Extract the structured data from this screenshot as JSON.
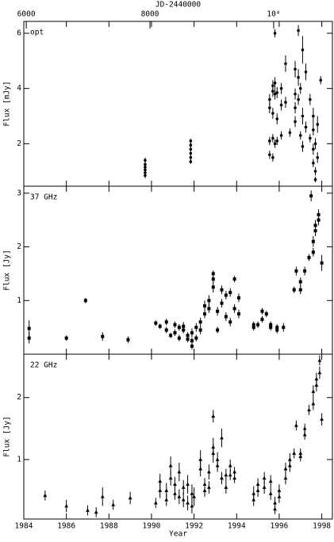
{
  "chart_data": [
    {
      "type": "scatter",
      "label": "opt",
      "ylabel": "Flux [mJy]",
      "marker": "circle",
      "color": "#000000",
      "x2label": "JD-2440000",
      "x2lim": [
        5960,
        10950
      ],
      "x2ticks": [
        6000,
        8000,
        {
          "value": 10000,
          "label": "10⁴"
        }
      ],
      "ylim": [
        0.46,
        6.43
      ],
      "yticks": [
        2,
        4,
        6
      ],
      "x": [
        1989.7,
        1989.7,
        1989.7,
        1989.7,
        1989.7,
        1989.7,
        1991.84,
        1991.84,
        1991.84,
        1991.84,
        1991.84,
        1991.84,
        1995.55,
        1995.55,
        1995.55,
        1995.55,
        1995.7,
        1995.7,
        1995.7,
        1995.7,
        1995.7,
        1995.8,
        1995.8,
        1995.8,
        1995.8,
        1995.9,
        1995.9,
        1995.9,
        1996.1,
        1996.1,
        1996.1,
        1996.3,
        1996.3,
        1996.5,
        1996.75,
        1996.75,
        1996.75,
        1996.75,
        1996.9,
        1996.9,
        1996.9,
        1997.0,
        1997.0,
        1997.1,
        1997.1,
        1997.1,
        1997.25,
        1997.25,
        1997.45,
        1997.45,
        1997.6,
        1997.6,
        1997.6,
        1997.6,
        1997.7,
        1997.7,
        1997.7,
        1997.8,
        1997.8,
        1997.95
      ],
      "values": [
        0.85,
        0.95,
        1.05,
        1.15,
        1.25,
        1.4,
        1.35,
        1.5,
        1.65,
        1.8,
        1.95,
        2.1,
        3.6,
        3.3,
        2.1,
        1.6,
        3.9,
        3.1,
        2.2,
        1.5,
        4.1,
        6.0,
        4.2,
        3.8,
        2.0,
        3.85,
        2.1,
        2.9,
        3.4,
        2.3,
        4.0,
        4.9,
        3.5,
        2.4,
        4.7,
        3.8,
        3.3,
        2.8,
        6.1,
        4.4,
        3.6,
        2.3,
        4.0,
        5.4,
        3.0,
        1.9,
        4.6,
        2.6,
        3.6,
        2.2,
        3.0,
        2.5,
        1.8,
        1.3,
        2.0,
        1.0,
        0.7,
        2.7,
        1.5,
        4.3
      ],
      "errors": [
        0.1,
        0.1,
        0.1,
        0.1,
        0.1,
        0.1,
        0.08,
        0.08,
        0.08,
        0.08,
        0.08,
        0.08,
        0.2,
        0.2,
        0.15,
        0.15,
        0.2,
        0.2,
        0.15,
        0.15,
        0.2,
        0.15,
        0.2,
        0.2,
        0.15,
        0.2,
        0.15,
        0.2,
        0.2,
        0.15,
        0.2,
        0.3,
        0.2,
        0.15,
        0.3,
        0.2,
        0.2,
        0.2,
        0.2,
        0.3,
        0.2,
        0.15,
        0.2,
        0.5,
        0.3,
        0.2,
        0.3,
        0.2,
        0.2,
        0.15,
        0.3,
        0.2,
        0.2,
        0.15,
        0.2,
        0.15,
        0.1,
        0.3,
        0.2,
        0.15
      ]
    },
    {
      "type": "scatter",
      "label": "37 GHz",
      "ylabel": "Flux [Jy]",
      "marker": "square",
      "color": "#000000",
      "ylim": [
        0,
        3.13
      ],
      "yticks": [
        1,
        2,
        3
      ],
      "x": [
        1984.25,
        1984.25,
        1986.0,
        1986.9,
        1987.7,
        1988.9,
        1990.2,
        1990.4,
        1990.7,
        1990.7,
        1990.9,
        1991.1,
        1991.1,
        1991.3,
        1991.3,
        1991.5,
        1991.5,
        1991.7,
        1991.7,
        1991.9,
        1991.9,
        1991.9,
        1992.1,
        1992.1,
        1992.3,
        1992.3,
        1992.5,
        1992.5,
        1992.7,
        1992.7,
        1992.9,
        1992.9,
        1992.9,
        1993.1,
        1993.1,
        1993.3,
        1993.3,
        1993.5,
        1993.5,
        1993.7,
        1993.7,
        1993.9,
        1993.9,
        1994.1,
        1994.1,
        1994.8,
        1994.8,
        1995.0,
        1995.2,
        1995.2,
        1995.4,
        1995.6,
        1995.6,
        1995.9,
        1995.9,
        1996.2,
        1996.7,
        1996.8,
        1997.0,
        1997.0,
        1997.2,
        1997.4,
        1997.4,
        1997.5,
        1997.6,
        1997.6,
        1997.7,
        1997.7,
        1997.85,
        1997.85,
        1998.0
      ],
      "values": [
        0.48,
        0.3,
        0.3,
        1.0,
        0.33,
        0.27,
        0.58,
        0.52,
        0.6,
        0.45,
        0.35,
        0.55,
        0.4,
        0.5,
        0.3,
        0.52,
        0.45,
        0.35,
        0.28,
        0.25,
        0.15,
        0.4,
        0.3,
        0.5,
        0.6,
        0.45,
        0.75,
        0.9,
        0.85,
        1.0,
        1.5,
        1.4,
        1.25,
        0.8,
        0.45,
        1.2,
        0.95,
        1.1,
        0.7,
        1.15,
        0.6,
        1.4,
        0.85,
        1.05,
        0.75,
        0.55,
        0.5,
        0.55,
        0.8,
        0.65,
        0.75,
        0.55,
        0.5,
        0.5,
        0.45,
        0.5,
        1.2,
        1.55,
        1.35,
        1.2,
        1.55,
        1.8,
        1.8,
        2.95,
        1.9,
        2.1,
        2.3,
        2.4,
        2.6,
        2.5,
        1.7
      ],
      "errors": [
        0.15,
        0.1,
        0.05,
        0.05,
        0.08,
        0.06,
        0.05,
        0.05,
        0.06,
        0.06,
        0.05,
        0.06,
        0.06,
        0.06,
        0.06,
        0.08,
        0.06,
        0.06,
        0.06,
        0.06,
        0.06,
        0.08,
        0.06,
        0.08,
        0.08,
        0.08,
        0.08,
        0.1,
        0.08,
        0.1,
        0.06,
        0.06,
        0.1,
        0.08,
        0.06,
        0.08,
        0.08,
        0.08,
        0.08,
        0.08,
        0.08,
        0.06,
        0.08,
        0.08,
        0.08,
        0.06,
        0.06,
        0.06,
        0.06,
        0.06,
        0.06,
        0.06,
        0.06,
        0.06,
        0.06,
        0.08,
        0.06,
        0.08,
        0.08,
        0.08,
        0.08,
        0.06,
        0.06,
        0.1,
        0.08,
        0.1,
        0.1,
        0.1,
        0.1,
        0.1,
        0.15
      ]
    },
    {
      "type": "scatter",
      "label": "22 GHz",
      "ylabel": "Flux [Jy]",
      "marker": "triangle",
      "color": "#000000",
      "xlabel": "Year",
      "xlim": [
        1984,
        1998.5
      ],
      "xticks": [
        1984,
        1986,
        1988,
        1990,
        1992,
        1994,
        1996,
        1998
      ],
      "ylim": [
        0.04,
        2.7
      ],
      "yticks": [
        1,
        2
      ],
      "x": [
        1985.0,
        1986.0,
        1987.0,
        1987.4,
        1987.7,
        1988.2,
        1989.0,
        1990.2,
        1990.4,
        1990.4,
        1990.7,
        1990.7,
        1990.9,
        1990.9,
        1991.1,
        1991.1,
        1991.3,
        1991.3,
        1991.5,
        1991.5,
        1991.7,
        1991.7,
        1991.9,
        1991.9,
        1992.0,
        1992.3,
        1992.3,
        1992.5,
        1992.5,
        1992.7,
        1992.7,
        1992.9,
        1992.9,
        1992.9,
        1993.1,
        1993.1,
        1993.3,
        1993.3,
        1993.5,
        1993.5,
        1993.7,
        1993.7,
        1993.9,
        1993.9,
        1994.8,
        1994.8,
        1995.0,
        1995.0,
        1995.3,
        1995.3,
        1995.6,
        1995.6,
        1995.8,
        1995.8,
        1996.0,
        1996.0,
        1996.3,
        1996.3,
        1996.5,
        1996.5,
        1996.7,
        1996.8,
        1997.0,
        1997.0,
        1997.2,
        1997.2,
        1997.4,
        1997.6,
        1997.6,
        1997.75,
        1997.75,
        1997.9,
        1997.9,
        1998.0
      ],
      "values": [
        0.42,
        0.25,
        0.18,
        0.15,
        0.4,
        0.27,
        0.38,
        0.3,
        0.5,
        0.65,
        0.5,
        0.35,
        0.9,
        0.7,
        0.6,
        0.45,
        0.4,
        0.8,
        0.35,
        0.55,
        0.6,
        0.3,
        0.45,
        0.25,
        0.4,
        0.85,
        1.0,
        0.6,
        0.5,
        0.55,
        0.8,
        1.2,
        1.1,
        1.7,
        1.0,
        0.9,
        1.35,
        0.7,
        0.75,
        0.55,
        0.9,
        0.75,
        0.8,
        0.7,
        0.45,
        0.35,
        0.5,
        0.6,
        0.7,
        0.55,
        0.65,
        0.45,
        0.3,
        0.2,
        0.5,
        0.4,
        0.85,
        0.7,
        1.0,
        0.9,
        1.1,
        1.55,
        1.05,
        1.1,
        1.4,
        1.5,
        1.8,
        1.9,
        2.1,
        2.2,
        2.3,
        2.6,
        2.4,
        1.65
      ],
      "errors": [
        0.08,
        0.1,
        0.08,
        0.08,
        0.15,
        0.08,
        0.1,
        0.08,
        0.12,
        0.12,
        0.12,
        0.1,
        0.15,
        0.12,
        0.12,
        0.1,
        0.12,
        0.15,
        0.12,
        0.12,
        0.15,
        0.12,
        0.15,
        0.12,
        0.15,
        0.12,
        0.15,
        0.1,
        0.1,
        0.1,
        0.12,
        0.15,
        0.15,
        0.1,
        0.12,
        0.1,
        0.15,
        0.1,
        0.1,
        0.1,
        0.1,
        0.08,
        0.08,
        0.08,
        0.12,
        0.1,
        0.1,
        0.1,
        0.1,
        0.1,
        0.1,
        0.1,
        0.1,
        0.08,
        0.1,
        0.1,
        0.1,
        0.1,
        0.1,
        0.1,
        0.08,
        0.08,
        0.08,
        0.08,
        0.08,
        0.08,
        0.08,
        0.1,
        0.1,
        0.1,
        0.1,
        0.08,
        0.1,
        0.1
      ]
    }
  ]
}
